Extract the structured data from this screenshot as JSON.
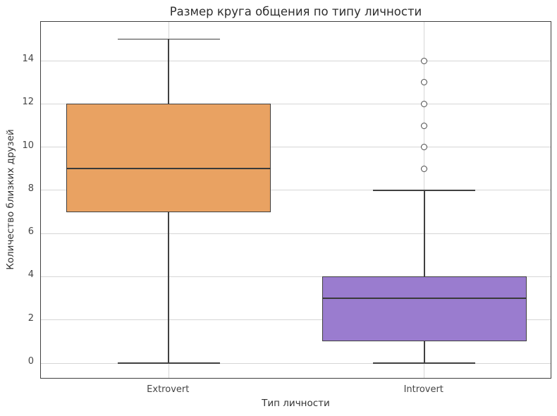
{
  "chart_data": {
    "type": "box",
    "title": "Размер круга общения по типу личности",
    "xlabel": "Тип личности",
    "ylabel": "Количество близких друзей",
    "categories": [
      "Extrovert",
      "Introvert"
    ],
    "positions": [
      0,
      1
    ],
    "xlim": [
      -0.5,
      1.5
    ],
    "ylim": [
      -0.75,
      15.8
    ],
    "yticks": [
      0,
      2,
      4,
      6,
      8,
      10,
      12,
      14
    ],
    "grid": true,
    "legend": null,
    "box_width": 0.8,
    "cap_width": 0.4,
    "colors": {
      "background": "#ffffff",
      "grid": "#d6d6d6",
      "line": "#404040",
      "spine": "#404040"
    },
    "series": [
      {
        "name": "Extrovert",
        "color": "#E9A262",
        "whisker_low": 0,
        "q1": 7,
        "median": 9,
        "q3": 12,
        "whisker_high": 15,
        "outliers": []
      },
      {
        "name": "Introvert",
        "color": "#9A7CCF",
        "whisker_low": 0,
        "q1": 1,
        "median": 3,
        "q3": 4,
        "whisker_high": 8,
        "outliers": [
          9,
          10,
          11,
          12,
          13,
          14
        ]
      }
    ]
  }
}
